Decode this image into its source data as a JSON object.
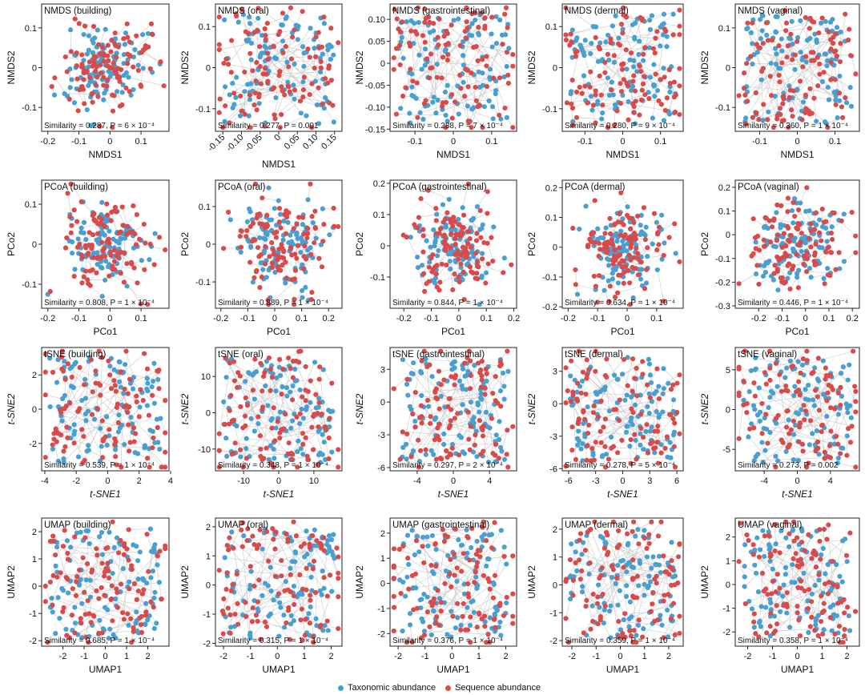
{
  "chart_data": {
    "type": "scatter",
    "legend": [
      {
        "name": "Taxonomic abundance",
        "color": "#4a9fd1"
      },
      {
        "name": "Sequence abundance",
        "color": "#d94a4a"
      }
    ],
    "connector_color": "#c9c9c9",
    "rows": [
      {
        "method": "NMDS",
        "xlabel": "NMDS1",
        "ylabel": "NMDS2",
        "panels": [
          {
            "title": "NMDS (building)",
            "xlim": [
              -0.22,
              0.19
            ],
            "ylim": [
              -0.16,
              0.16
            ],
            "xticks": [
              "-0.2",
              "-0.1",
              "0",
              "0.1"
            ],
            "yticks": [
              "-0.1",
              "0",
              "0.1"
            ],
            "annotation": "Similarity = 0.287, P = 6 × 10⁻⁴",
            "dist": "core"
          },
          {
            "title": "NMDS (oral)",
            "xlim": [
              -0.17,
              0.17
            ],
            "ylim": [
              -0.155,
              0.155
            ],
            "xticks": [
              "-0.15",
              "-0.10",
              "-0.05",
              "0",
              "0.05",
              "0.10",
              "0.15"
            ],
            "yticks": [
              "-0.1",
              "0",
              "0.1"
            ],
            "annotation": "Similarity = 0.277, P = 0.001",
            "dist": "uniform",
            "xrot": true
          },
          {
            "title": "NMDS (gastrointestinal)",
            "xlim": [
              -0.165,
              0.165
            ],
            "ylim": [
              -0.155,
              0.135
            ],
            "xticks": [
              "-0.1",
              "0",
              "0.1"
            ],
            "yticks": [
              "-0.15",
              "-0.10",
              "-0.05",
              "0",
              "0.05",
              "0.10"
            ],
            "annotation": "Similarity = 0.288, P = 7 × 10⁻⁴",
            "dist": "uniform"
          },
          {
            "title": "NMDS (dermal)",
            "xlim": [
              -0.16,
              0.16
            ],
            "ylim": [
              -0.155,
              0.155
            ],
            "xticks": [
              "-0.1",
              "0",
              "0.1"
            ],
            "yticks": [
              "-0.1",
              "0",
              "0.1"
            ],
            "annotation": "Similarity = 0.280, P = 9 × 10⁻⁴",
            "dist": "uniform"
          },
          {
            "title": "NMDS (vaginal)",
            "xlim": [
              -0.165,
              0.165
            ],
            "ylim": [
              -0.16,
              0.16
            ],
            "xticks": [
              "-0.1",
              "0",
              "0.1"
            ],
            "yticks": [
              "-0.1",
              "0",
              "0.1"
            ],
            "annotation": "Similarity = 0.360, P = 1 × 10⁻⁴",
            "dist": "uniform"
          }
        ]
      },
      {
        "method": "PCoA",
        "xlabel": "PCo1",
        "ylabel": "PCo2",
        "panels": [
          {
            "title": "PCoA (building)",
            "xlim": [
              -0.22,
              0.19
            ],
            "ylim": [
              -0.16,
              0.16
            ],
            "xticks": [
              "-0.2",
              "-0.1",
              "0",
              "0.1"
            ],
            "yticks": [
              "-0.1",
              "0",
              "0.1"
            ],
            "annotation": "Similarity = 0.808, P = 1 × 10⁻⁴",
            "dist": "core"
          },
          {
            "title": "PCoA (oral)",
            "xlim": [
              -0.22,
              0.25
            ],
            "ylim": [
              -0.17,
              0.17
            ],
            "xticks": [
              "-0.2",
              "-0.1",
              "0",
              "0.1",
              "0.2"
            ],
            "yticks": [
              "-0.1",
              "0",
              "0.1"
            ],
            "annotation": "Similarity = 0.889, P = 1 × 10⁻⁴",
            "dist": "core"
          },
          {
            "title": "PCoA (gastrointestinal)",
            "xlim": [
              -0.25,
              0.21
            ],
            "ylim": [
              -0.2,
              0.21
            ],
            "xticks": [
              "-0.2",
              "-0.1",
              "0",
              "0.1",
              "0.2"
            ],
            "yticks": [
              "-0.1",
              "0",
              "0.1",
              "0.2"
            ],
            "annotation": "Similarity = 0.844, P = 1 × 10⁻⁴",
            "dist": "core"
          },
          {
            "title": "PCoA (dermal)",
            "xlim": [
              -0.22,
              0.19
            ],
            "ylim": [
              -0.205,
              0.225
            ],
            "xticks": [
              "-0.2",
              "-0.1",
              "0",
              "0.1"
            ],
            "yticks": [
              "-0.2",
              "-0.1",
              "0",
              "0.1",
              "0.2"
            ],
            "annotation": "Similarity = 0.634, P = 1 × 10⁻⁴",
            "dist": "core"
          },
          {
            "title": "PCoA (vaginal)",
            "xlim": [
              -0.3,
              0.23
            ],
            "ylim": [
              -0.31,
              0.23
            ],
            "xticks": [
              "-0.2",
              "-0.1",
              "0",
              "0.1",
              "0.2"
            ],
            "yticks": [
              "-0.3",
              "-0.2",
              "-0.1",
              "0",
              "0.1",
              "0.2"
            ],
            "annotation": "Similarity = 0.446, P = 1 × 10⁻⁴",
            "dist": "core"
          }
        ]
      },
      {
        "method": "tSNE",
        "xlabel": "t-SNE1",
        "ylabel": "t-SNE2",
        "italic_labels": true,
        "panels": [
          {
            "title": "tSNE (building)",
            "xlim": [
              -4.2,
              3.9
            ],
            "ylim": [
              -3.6,
              3.6
            ],
            "xticks": [
              "-4",
              "-2",
              "0",
              "2",
              "4"
            ],
            "yticks": [
              "-2",
              "0",
              "2"
            ],
            "annotation": "Similarity = 0.539, P = 1 × 10⁻⁴",
            "dist": "uniform"
          },
          {
            "title": "tSNE (oral)",
            "xlim": [
              -18,
              18
            ],
            "ylim": [
              -16,
              18
            ],
            "xticks": [
              "-10",
              "0",
              "10"
            ],
            "yticks": [
              "-10",
              "0",
              "10"
            ],
            "annotation": "Similarity = 0.348, P = 1 × 10⁻⁴",
            "dist": "uniform"
          },
          {
            "title": "tSNE (gastrointestinal)",
            "xlim": [
              -7,
              7
            ],
            "ylim": [
              -6.3,
              5
            ],
            "xticks": [
              "-4",
              "0",
              "4"
            ],
            "yticks": [
              "-6",
              "-3",
              "0",
              "3"
            ],
            "annotation": "Similarity = 0.297, P = 2 × 10⁻⁴",
            "dist": "uniform"
          },
          {
            "title": "tSNE (dermal)",
            "xlim": [
              -6.7,
              6.7
            ],
            "ylim": [
              -6.2,
              5.2
            ],
            "xticks": [
              "-6",
              "-3",
              "0",
              "3",
              "6"
            ],
            "yticks": [
              "-6",
              "-3",
              "0",
              "3"
            ],
            "annotation": "Similarity = 0.278, P = 5 × 10⁻⁴",
            "dist": "uniform"
          },
          {
            "title": "tSNE (vaginal)",
            "xlim": [
              -7.5,
              7.5
            ],
            "ylim": [
              -7.7,
              7.8
            ],
            "xticks": [
              "-4",
              "0",
              "4"
            ],
            "yticks": [
              "-5",
              "0",
              "5"
            ],
            "annotation": "Similarity = 0.273, P = 0.002",
            "dist": "uniform"
          }
        ]
      },
      {
        "method": "UMAP",
        "xlabel": "UMAP1",
        "ylabel": "UMAP2",
        "panels": [
          {
            "title": "UMAP (building)",
            "xlim": [
              -3,
              3
            ],
            "ylim": [
              -2.2,
              2.5
            ],
            "xticks": [
              "-2",
              "-1",
              "0",
              "1",
              "2"
            ],
            "yticks": [
              "-2",
              "-1",
              "0",
              "1",
              "2"
            ],
            "annotation": "Similarity = 0.685, P = 1 × 10⁻⁴",
            "dist": "uniform"
          },
          {
            "title": "UMAP (oral)",
            "xlim": [
              -2.3,
              2.4
            ],
            "ylim": [
              -2.1,
              2.3
            ],
            "xticks": [
              "-2",
              "-1",
              "0",
              "1",
              "2"
            ],
            "yticks": [
              "-2",
              "-1",
              "0",
              "1",
              "2"
            ],
            "annotation": "Similarity = 0.315, P = 1 × 10⁻⁴",
            "dist": "uniform"
          },
          {
            "title": "UMAP (gastrointestinal)",
            "xlim": [
              -2.3,
              2.4
            ],
            "ylim": [
              -2.5,
              2.6
            ],
            "xticks": [
              "-2",
              "-1",
              "0",
              "1",
              "2"
            ],
            "yticks": [
              "-2",
              "-1",
              "0",
              "1",
              "2"
            ],
            "annotation": "Similarity = 0.376, P = 1 × 10⁻⁴",
            "dist": "uniform"
          },
          {
            "title": "UMAP (dermal)",
            "xlim": [
              -2.4,
              2.6
            ],
            "ylim": [
              -2.2,
              2.4
            ],
            "xticks": [
              "-2",
              "-1",
              "0",
              "1",
              "2"
            ],
            "yticks": [
              "-2",
              "-1",
              "0",
              "1",
              "2"
            ],
            "annotation": "Similarity = 0.359, P = 1 × 10⁻⁴",
            "dist": "uniform"
          },
          {
            "title": "UMAP (vaginal)",
            "xlim": [
              -2.5,
              2.5
            ],
            "ylim": [
              -2.6,
              2.8
            ],
            "xticks": [
              "-2",
              "-1",
              "0",
              "1",
              "2"
            ],
            "yticks": [
              "-2",
              "-1",
              "0",
              "1",
              "2"
            ],
            "annotation": "Similarity = 0.358, P = 1 × 10⁻⁴",
            "dist": "uniform"
          }
        ]
      }
    ]
  }
}
